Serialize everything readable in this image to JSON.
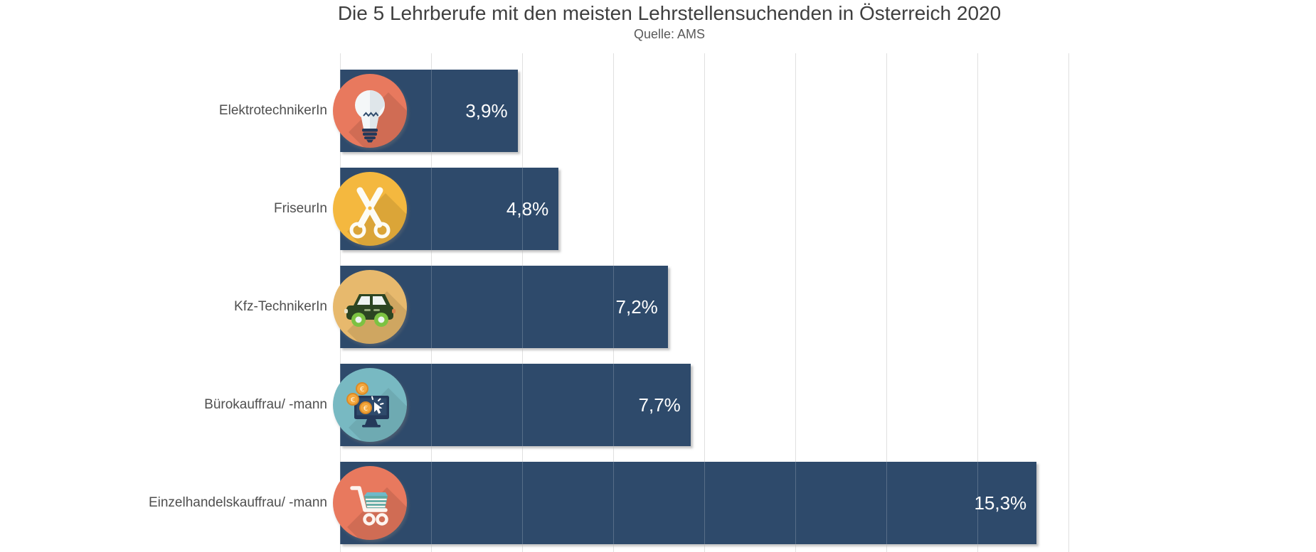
{
  "header": {
    "title": "Die 5 Lehrberufe mit den meisten Lehrstellensuchenden in Österreich 2020",
    "source": "Quelle: AMS"
  },
  "colors": {
    "background": "#ffffff",
    "bar": "#2e4a6b",
    "value_text": "#ffffff",
    "category_text": "#4f4f4f",
    "title_text": "#3f3f3f",
    "source_text": "#595959",
    "gridline": "#d9d9d9"
  },
  "chart_data": {
    "type": "bar",
    "orientation": "horizontal",
    "title": "Die 5 Lehrberufe mit den meisten Lehrstellensuchenden in Österreich 2020",
    "source": "Quelle: AMS",
    "unit": "%",
    "categories": [
      "ElektrotechnikerIn",
      "FriseurIn",
      "Kfz-TechnikerIn",
      "Bürokauffrau/ -mann",
      "Einzelhandelskauffrau/ -mann"
    ],
    "values": [
      3.9,
      4.8,
      7.2,
      7.7,
      15.3
    ],
    "value_labels": [
      "3,9%",
      "4,8%",
      "7,2%",
      "7,7%",
      "15,3%"
    ],
    "xlim": [
      0,
      16
    ],
    "gridline_step": 2,
    "grid": true,
    "legend": false,
    "axis_tick_labels_visible": false,
    "bar_color": "#2e4a6b",
    "icons": [
      {
        "name": "lightbulb-icon",
        "circle_color": "#e8795e"
      },
      {
        "name": "scissors-icon",
        "circle_color": "#f4b83f"
      },
      {
        "name": "car-icon",
        "circle_color": "#e7b96d"
      },
      {
        "name": "monitor-coins-icon",
        "circle_color": "#78b9c2"
      },
      {
        "name": "shopping-cart-icon",
        "circle_color": "#e8795e"
      }
    ]
  }
}
